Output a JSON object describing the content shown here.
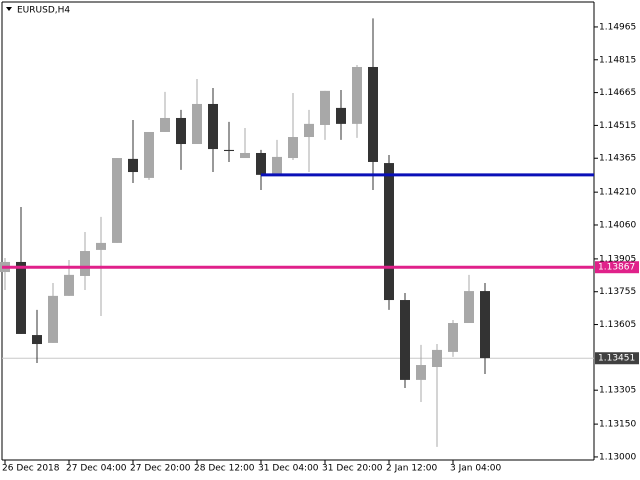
{
  "chart_data": {
    "type": "candlestick",
    "title": "EURUSD,H4",
    "categories": [
      "26 Dec 2018",
      null,
      null,
      null,
      "27 Dec 04:00",
      null,
      null,
      null,
      "27 Dec 20:00",
      null,
      null,
      null,
      "28 Dec 12:00",
      null,
      null,
      null,
      "31 Dec 04:00",
      null,
      null,
      null,
      "31 Dec 20:00",
      null,
      null,
      null,
      "2 Jan 12:00",
      null,
      null,
      null,
      "3 Jan 04:00",
      null,
      null
    ],
    "open": [
      1.13845,
      1.13891,
      1.13557,
      1.13521,
      1.13736,
      1.13827,
      1.13946,
      1.13978,
      1.14362,
      1.14275,
      1.14485,
      1.14549,
      1.1443,
      1.14613,
      1.14403,
      1.14366,
      1.14389,
      1.14289,
      1.14366,
      1.14462,
      1.14517,
      1.14595,
      1.14522,
      1.14782,
      1.14343,
      1.13717,
      1.13352,
      1.13411,
      1.1348,
      1.13612,
      1.13758
    ],
    "high": [
      1.13909,
      1.14142,
      1.13672,
      1.13795,
      1.139,
      1.14028,
      1.14097,
      1.14366,
      1.1454,
      1.14485,
      1.14668,
      1.14586,
      1.14727,
      1.14686,
      1.14531,
      1.14503,
      1.14403,
      1.14449,
      1.14663,
      1.14586,
      1.14673,
      1.14677,
      1.14791,
      1.15004,
      1.1438,
      1.13749,
      1.13512,
      1.13516,
      1.13626,
      1.13832,
      1.13795
    ],
    "low": [
      1.13763,
      1.13562,
      1.13429,
      1.13521,
      1.13736,
      1.13763,
      1.13644,
      1.13978,
      1.14252,
      1.14266,
      1.14485,
      1.14312,
      1.1443,
      1.14302,
      1.14348,
      1.14366,
      1.1422,
      1.14289,
      1.14357,
      1.14302,
      1.14449,
      1.14449,
      1.14458,
      1.1422,
      1.13672,
      1.13315,
      1.13251,
      1.13046,
      1.13457,
      1.13612,
      1.13379
    ],
    "close": [
      1.13891,
      1.13562,
      1.13516,
      1.13736,
      1.13832,
      1.13941,
      1.13978,
      1.14366,
      1.14302,
      1.14485,
      1.14549,
      1.1443,
      1.14613,
      1.14407,
      1.14398,
      1.14389,
      1.14289,
      1.14371,
      1.14462,
      1.14522,
      1.14673,
      1.14522,
      1.14782,
      1.14348,
      1.13717,
      1.13352,
      1.1342,
      1.13489,
      1.13612,
      1.13758,
      1.13452
    ],
    "up_color": "#a8a8a8",
    "down_color": "#333333",
    "ylim": [
      1.12986,
      1.15079
    ],
    "yticks": [
      1.14965,
      1.14815,
      1.14665,
      1.14515,
      1.14365,
      {
        "value": 1.1421,
        "label": "1.14210"
      },
      {
        "value": 1.1406,
        "label": "1.14060"
      },
      1.13905,
      1.13755,
      1.13605,
      1.13305,
      {
        "value": 1.1315,
        "label": "1.13150"
      },
      {
        "value": 1.13,
        "label": "1.13000"
      }
    ],
    "lines": [
      {
        "value": 1.14289,
        "color": "#0a10b8"
      },
      {
        "value": 1.13867,
        "color": "#e0218a"
      }
    ],
    "price_line": {
      "value": 1.13451,
      "color": "#c8c8c8",
      "label_color": "#404040"
    }
  }
}
